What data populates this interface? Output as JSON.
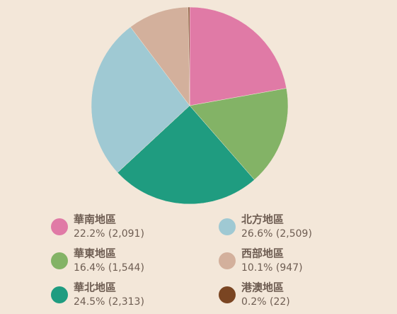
{
  "chart_data": {
    "type": "pie",
    "categories": [
      "華南地區",
      "華東地區",
      "華北地區",
      "北方地區",
      "西部地區",
      "港澳地區"
    ],
    "values": [
      2091,
      1544,
      2313,
      2509,
      947,
      22
    ],
    "value_labels": [
      "22.2% (2,091)",
      "16.4% (1,544)",
      "24.5% (2,313)",
      "26.6% (2,509)",
      "10.1% (947)",
      "0.2% (22)"
    ],
    "colors": [
      "#e07aa6",
      "#83b366",
      "#1f9c80",
      "#9fc9d3",
      "#d3b09c",
      "#7a4522"
    ]
  }
}
